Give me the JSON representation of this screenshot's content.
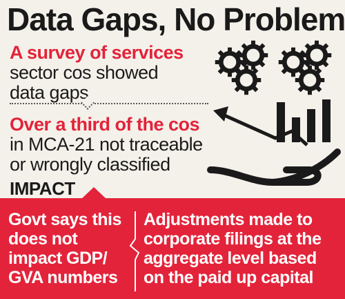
{
  "title": "Data Gaps, No Problem",
  "survey": {
    "highlight": "A survey of services",
    "line2": "sector cos showed",
    "line3": "data gaps"
  },
  "traceability": {
    "highlight": "Over a third of the cos",
    "line2": "in MCA-21 not traceable",
    "line3": "or wrongly classified"
  },
  "impact": {
    "label": "IMPACT",
    "left_lines": [
      "Govt says this",
      "does not",
      "impact GDP/",
      "GVA numbers"
    ],
    "right_lines": [
      "Adjustments made to",
      "corporate filings at the",
      "aggregate level based",
      "on the paid up capital"
    ]
  },
  "colors": {
    "accent_red": "#e3233a",
    "text_dark": "#1a1a1a",
    "background": "#f4f1ea"
  },
  "icons": [
    "gear-icon",
    "bar-chart-icon",
    "trend-arrow-icon",
    "hand-icon"
  ]
}
